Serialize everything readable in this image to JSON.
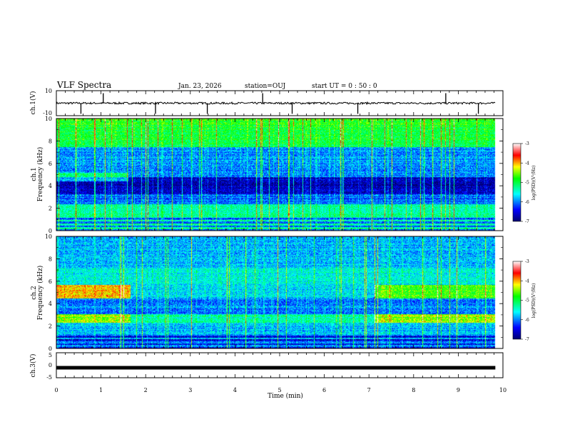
{
  "header": {
    "title": "VLF Spectra",
    "date": "Jan. 23, 2026",
    "station": "station=OUJ",
    "start_ut": "start  UT =   0 : 50 : 0"
  },
  "chart_data": [
    {
      "type": "line",
      "id": "ch1-waveform",
      "ylabel": "ch.1(V)",
      "ylim": [
        -10,
        10
      ],
      "yticks": [
        10,
        -10
      ],
      "x_range_min": [
        0,
        9.83
      ],
      "baseline": 0,
      "spikes_min": [
        0.55,
        1.05,
        2.22,
        3.38,
        4.62,
        5.28,
        6.75,
        8.72,
        9.45
      ],
      "color": "#000000"
    },
    {
      "type": "heatmap",
      "id": "ch1-spectrogram",
      "ylabel_line1": "ch.1",
      "ylabel_line2": "Frequency (kHz)",
      "ylim": [
        0,
        10
      ],
      "yticks": [
        0,
        2,
        4,
        6,
        8,
        10
      ],
      "x_range_min": [
        0,
        9.83
      ],
      "colorbar_label": "log(PSD)(V²/Hz)",
      "colorbar_ticks": [
        -3,
        -4,
        -5,
        -6,
        -7
      ],
      "colorbar_range": [
        -7,
        -3
      ]
    },
    {
      "type": "heatmap",
      "id": "ch2-spectrogram",
      "ylabel_line1": "ch.2",
      "ylabel_line2": "Frequency (kHz)",
      "ylim": [
        0,
        10
      ],
      "yticks": [
        0,
        2,
        4,
        6,
        8,
        10
      ],
      "x_range_min": [
        0,
        9.83
      ],
      "colorbar_label": "log(PSD)(V²/Hz)",
      "colorbar_ticks": [
        -3,
        -4,
        -5,
        -6,
        -7
      ],
      "colorbar_range": [
        -7,
        -3
      ],
      "band_intervals_min": [
        [
          0,
          1.65
        ],
        [
          7.12,
          9.83
        ]
      ]
    },
    {
      "type": "line",
      "id": "ch3-waveform",
      "ylabel": "ch.3(V)",
      "ylim": [
        -5,
        5
      ],
      "yticks": [
        5,
        0,
        -5
      ],
      "constant_value": -1.0,
      "x_range_min": [
        0,
        9.83
      ],
      "color": "#000000"
    }
  ],
  "xaxis": {
    "label": "Time (min)",
    "range": [
      0,
      10
    ],
    "ticks": [
      0,
      1,
      2,
      3,
      4,
      5,
      6,
      7,
      8,
      9,
      10
    ],
    "tick_labels": [
      "0",
      "1",
      "2",
      "3",
      "4",
      "5",
      "6",
      "7",
      "8",
      "9",
      "10"
    ]
  },
  "colors": {
    "colormap": [
      "#000070",
      "#0000ff",
      "#00ffff",
      "#00ff00",
      "#ffff00",
      "#ff0000",
      "#ffffff"
    ]
  }
}
